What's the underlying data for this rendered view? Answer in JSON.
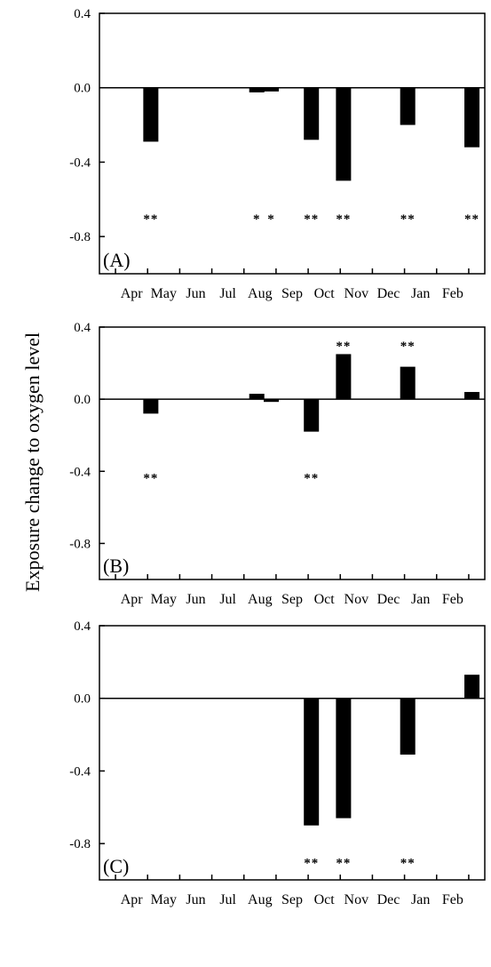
{
  "chart_data": {
    "type": "bar",
    "ylabel": "Exposure change to oxygen level",
    "categories": [
      "Apr",
      "May",
      "Jun",
      "Jul",
      "Aug",
      "Sep",
      "Oct",
      "Nov",
      "Dec",
      "Jan",
      "Feb"
    ],
    "ylim": [
      -1.0,
      0.4
    ],
    "yticks": [
      0.4,
      0.0,
      -0.4,
      -0.8
    ],
    "ytick_labels": [
      "0.4",
      "0.0",
      "-0.4",
      "-0.8"
    ],
    "grid": false,
    "panels": [
      {
        "label": "(A)",
        "bars": [
          {
            "x": 4.6,
            "value": -0.29
          },
          {
            "x": 7.9,
            "value": -0.025
          },
          {
            "x": 8.35,
            "value": -0.02
          },
          {
            "x": 9.6,
            "value": -0.28
          },
          {
            "x": 10.6,
            "value": -0.5
          },
          {
            "x": 12.6,
            "value": -0.2
          },
          {
            "x": 14.6,
            "value": -0.32
          }
        ],
        "significance": [
          {
            "x": 4.6,
            "y": -0.68,
            "text": "**"
          },
          {
            "x": 7.9,
            "y": -0.68,
            "text": "*"
          },
          {
            "x": 8.35,
            "y": -0.68,
            "text": "*"
          },
          {
            "x": 9.6,
            "y": -0.68,
            "text": "**"
          },
          {
            "x": 10.6,
            "y": -0.68,
            "text": "**"
          },
          {
            "x": 12.6,
            "y": -0.68,
            "text": "**"
          },
          {
            "x": 14.6,
            "y": -0.68,
            "text": "**"
          }
        ]
      },
      {
        "label": "(B)",
        "bars": [
          {
            "x": 4.6,
            "value": -0.08
          },
          {
            "x": 7.9,
            "value": 0.03
          },
          {
            "x": 8.35,
            "value": -0.015
          },
          {
            "x": 9.6,
            "value": -0.18
          },
          {
            "x": 10.6,
            "value": 0.25
          },
          {
            "x": 12.6,
            "value": 0.18
          },
          {
            "x": 14.6,
            "value": 0.04
          }
        ],
        "significance": [
          {
            "x": 4.6,
            "y": -0.41,
            "text": "**"
          },
          {
            "x": 9.6,
            "y": -0.41,
            "text": "**"
          },
          {
            "x": 10.6,
            "y": 0.32,
            "text": "**"
          },
          {
            "x": 12.6,
            "y": 0.32,
            "text": "**"
          }
        ]
      },
      {
        "label": "(C)",
        "bars": [
          {
            "x": 9.6,
            "value": -0.7
          },
          {
            "x": 10.6,
            "value": -0.66
          },
          {
            "x": 12.6,
            "value": -0.31
          },
          {
            "x": 14.6,
            "value": 0.13
          }
        ],
        "significance": [
          {
            "x": 9.6,
            "y": -0.88,
            "text": "**"
          },
          {
            "x": 10.6,
            "y": -0.88,
            "text": "**"
          },
          {
            "x": 12.6,
            "y": -0.88,
            "text": "**"
          }
        ]
      }
    ]
  }
}
